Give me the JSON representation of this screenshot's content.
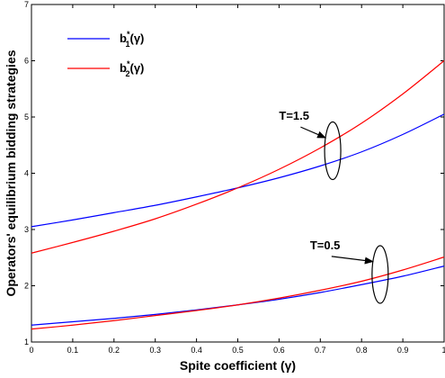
{
  "chart_data": {
    "type": "line",
    "xlabel": "Spite coefficient (γ)",
    "ylabel": "Operators' equilibrium bidding strategies",
    "xlim": [
      0,
      1
    ],
    "ylim": [
      1,
      7
    ],
    "x_ticks": [
      "0",
      "0.1",
      "0.2",
      "0.3",
      "0.4",
      "0.5",
      "0.6",
      "0.7",
      "0.8",
      "0.9",
      "1"
    ],
    "y_ticks": [
      "1",
      "2",
      "3",
      "4",
      "5",
      "6",
      "7"
    ],
    "grid": false,
    "legend_placement": "top-left",
    "legend": [
      {
        "base": "b",
        "sup": "*",
        "sub": "1",
        "arg": "(γ)",
        "color": "#0000ff"
      },
      {
        "base": "b",
        "sup": "*",
        "sub": "2",
        "arg": "(γ)",
        "color": "#ff0000"
      }
    ],
    "x": [
      0,
      0.1,
      0.2,
      0.3,
      0.4,
      0.5,
      0.6,
      0.7,
      0.8,
      0.9,
      1.0
    ],
    "series": [
      {
        "color": "#0000ff",
        "group": "T=1.5",
        "values": [
          3.05,
          3.17,
          3.3,
          3.43,
          3.58,
          3.74,
          3.92,
          4.13,
          4.38,
          4.69,
          5.05
        ]
      },
      {
        "color": "#ff0000",
        "group": "T=1.5",
        "values": [
          2.58,
          2.77,
          2.97,
          3.19,
          3.45,
          3.74,
          4.07,
          4.45,
          4.89,
          5.41,
          6.0
        ]
      },
      {
        "color": "#0000ff",
        "group": "T=0.5",
        "values": [
          1.3,
          1.36,
          1.42,
          1.49,
          1.57,
          1.66,
          1.76,
          1.88,
          2.02,
          2.17,
          2.35
        ]
      },
      {
        "color": "#ff0000",
        "group": "T=0.5",
        "values": [
          1.23,
          1.3,
          1.38,
          1.47,
          1.56,
          1.66,
          1.78,
          1.92,
          2.08,
          2.28,
          2.51
        ]
      }
    ],
    "annotations": [
      {
        "text": "T=1.5",
        "ellipse_x": 0.73,
        "ellipse_y": 4.4,
        "text_x": 0.6,
        "text_y": 4.95
      },
      {
        "text": "T=0.5",
        "ellipse_x": 0.845,
        "ellipse_y": 2.2,
        "text_x": 0.675,
        "text_y": 2.65
      }
    ]
  }
}
